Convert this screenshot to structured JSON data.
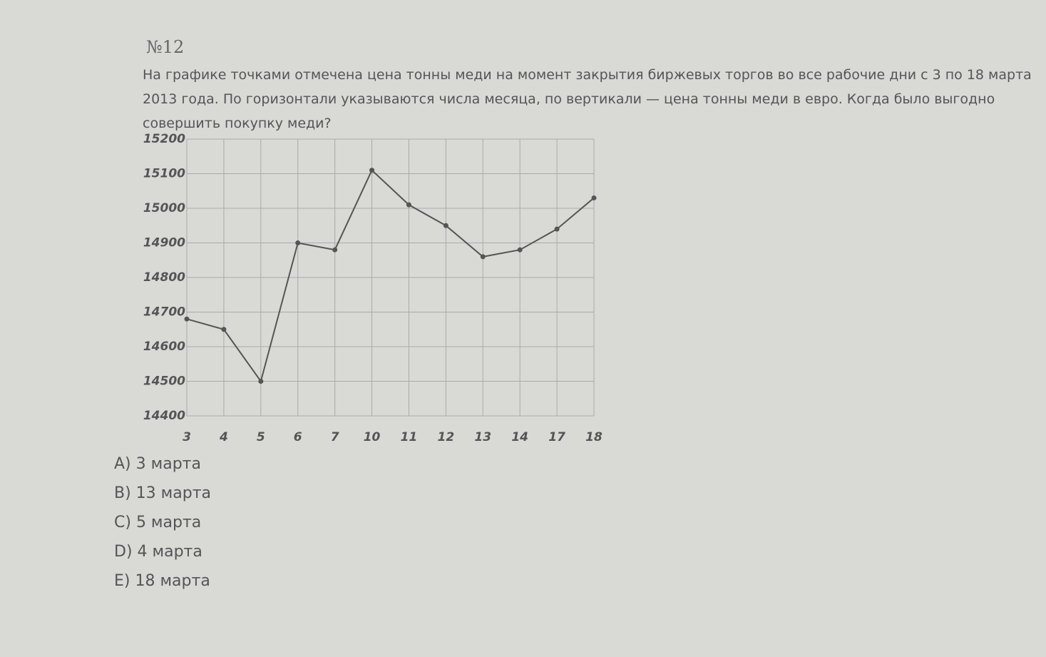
{
  "problem_number": "№12",
  "question": "На графике точками отмечена цена тонны меди на момент закрытия биржевых торгов во все рабочие дни с 3 по 18 марта 2013 года. По горизонтали указываются числа месяца, по вертикали — цена тонны меди в евро. Когда было выгодно совершить покупку меди?",
  "chart_data": {
    "type": "line",
    "categories": [
      "3",
      "4",
      "5",
      "6",
      "7",
      "10",
      "11",
      "12",
      "13",
      "14",
      "17",
      "18"
    ],
    "values": [
      14680,
      14650,
      14500,
      14900,
      14880,
      15110,
      15010,
      14950,
      14860,
      14880,
      14940,
      15030
    ],
    "color": "#555555",
    "ylim": [
      14400,
      15200
    ],
    "yticks": [
      14400,
      14500,
      14600,
      14700,
      14800,
      14900,
      15000,
      15100,
      15200
    ],
    "grid": true
  },
  "options": [
    "A) 3 марта",
    "B) 13 марта",
    "C) 5 марта",
    "D) 4 марта",
    "E) 18 марта"
  ]
}
